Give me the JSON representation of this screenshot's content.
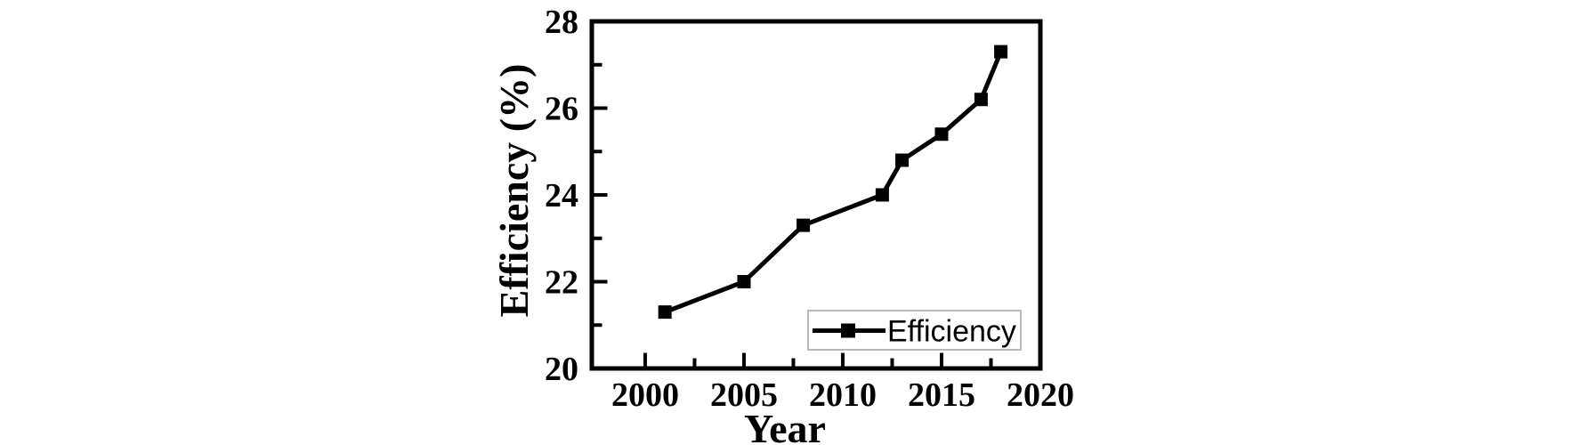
{
  "chart_data": {
    "type": "line",
    "title": "",
    "xlabel": "Year",
    "ylabel": "Efficiency (%)",
    "series": [
      {
        "name": "Efficiency",
        "x": [
          2001,
          2005,
          2008,
          2012,
          2013,
          2015,
          2017,
          2018
        ],
        "y": [
          21.3,
          22.0,
          23.3,
          24.0,
          24.8,
          25.4,
          26.2,
          27.3
        ]
      }
    ],
    "xlim": [
      1997.3,
      2020.0
    ],
    "ylim": [
      20,
      28
    ],
    "x_major_ticks": [
      2000,
      2005,
      2010,
      2015,
      2020
    ],
    "x_minor_ticks": [
      2002.5,
      2007.5,
      2012.5,
      2017.5
    ],
    "y_major_ticks": [
      20,
      22,
      24,
      26,
      28
    ],
    "y_minor_ticks": [
      21,
      23,
      25,
      27
    ],
    "grid": false,
    "marker": "filled-square",
    "line_color": "#000000",
    "axis_color": "#000000",
    "background": "#ffffff",
    "legend": {
      "position": "inside-lower-right",
      "entries": [
        "Efficiency"
      ],
      "border_color": "#b9b9b9",
      "fill": "#ffffff"
    }
  }
}
